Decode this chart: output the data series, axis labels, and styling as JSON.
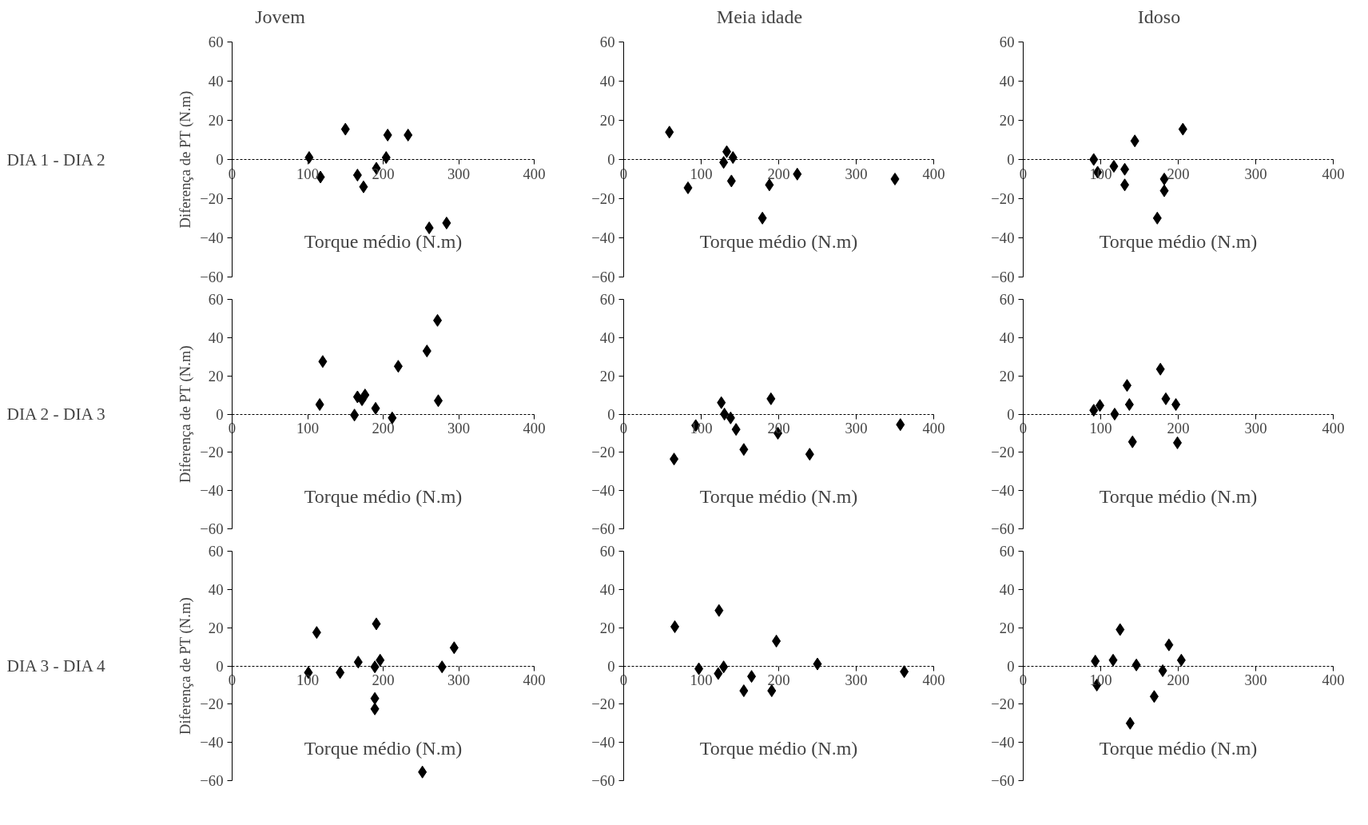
{
  "chart_data": [
    {
      "type": "scatter",
      "title": "Jovem",
      "xlabel": "Torque médio (N.m)",
      "ylabel": "Diferença de PT (N.m)",
      "annotations": [
        "DIA 1 - DIA 2"
      ],
      "color": "#000000",
      "marker": "diamond",
      "xlim": [
        0,
        400
      ],
      "ylim": [
        -60,
        60
      ],
      "xticks": [
        0,
        100,
        200,
        300,
        400
      ],
      "yticks": [
        -60,
        -40,
        -20,
        0,
        20,
        40,
        60
      ],
      "x": [
        102,
        117,
        150,
        166,
        174,
        191,
        204,
        206,
        233,
        261,
        284
      ],
      "values": [
        1,
        -9,
        15.5,
        -8,
        -14,
        -4.5,
        1,
        12.5,
        12.5,
        -35,
        -32.5
      ]
    },
    {
      "type": "scatter",
      "title": "Meia idade",
      "xlabel": "Torque médio (N.m)",
      "color": "#000000",
      "marker": "diamond",
      "xlim": [
        0,
        400
      ],
      "ylim": [
        -60,
        60
      ],
      "xticks": [
        0,
        100,
        200,
        300,
        400
      ],
      "yticks": [
        -60,
        -40,
        -20,
        0,
        20,
        40,
        60
      ],
      "x": [
        59,
        83,
        129,
        133,
        141,
        139,
        188,
        179,
        224,
        350
      ],
      "values": [
        14,
        -14.5,
        -1.5,
        4,
        1,
        -11,
        -13,
        -30,
        -7.5,
        -10
      ]
    },
    {
      "type": "scatter",
      "title": "Idoso",
      "xlabel": "Torque médio (N.m)",
      "color": "#000000",
      "marker": "diamond",
      "xlim": [
        0,
        400
      ],
      "ylim": [
        -60,
        60
      ],
      "xticks": [
        0,
        100,
        200,
        300,
        400
      ],
      "yticks": [
        -60,
        -40,
        -20,
        0,
        20,
        40,
        60
      ],
      "x": [
        91,
        96,
        117,
        131,
        131,
        144,
        182,
        182,
        173,
        206
      ],
      "values": [
        0,
        -6.5,
        -3.5,
        -5,
        -13,
        9.5,
        -10,
        -16,
        -30,
        15.5
      ]
    },
    {
      "type": "scatter",
      "xlabel": "Torque médio (N.m)",
      "ylabel": "Diferença de PT (N.m)",
      "annotations": [
        "DIA 2 - DIA 3"
      ],
      "color": "#000000",
      "marker": "diamond",
      "xlim": [
        0,
        400
      ],
      "ylim": [
        -60,
        60
      ],
      "xticks": [
        0,
        100,
        200,
        300,
        400
      ],
      "yticks": [
        -60,
        -40,
        -20,
        0,
        20,
        40,
        60
      ],
      "x": [
        116,
        120,
        162,
        166,
        172,
        176,
        190,
        212,
        220,
        258,
        272,
        273
      ],
      "values": [
        5,
        27.5,
        -0.5,
        9,
        7.5,
        10,
        3,
        -2,
        25,
        33,
        49,
        7
      ]
    },
    {
      "type": "scatter",
      "xlabel": "Torque médio (N.m)",
      "color": "#000000",
      "marker": "diamond",
      "xlim": [
        0,
        400
      ],
      "ylim": [
        -60,
        60
      ],
      "xticks": [
        0,
        100,
        200,
        300,
        400
      ],
      "yticks": [
        -60,
        -40,
        -20,
        0,
        20,
        40,
        60
      ],
      "x": [
        65,
        93,
        126,
        130,
        138,
        145,
        155,
        190,
        199,
        240,
        357
      ],
      "values": [
        -23.5,
        -6,
        6,
        0,
        -2,
        -8,
        -18.5,
        8,
        -10,
        -21,
        -5.5
      ]
    },
    {
      "type": "scatter",
      "xlabel": "Torque médio (N.m)",
      "color": "#000000",
      "marker": "diamond",
      "xlim": [
        0,
        400
      ],
      "ylim": [
        -60,
        60
      ],
      "xticks": [
        0,
        100,
        200,
        300,
        400
      ],
      "yticks": [
        -60,
        -40,
        -20,
        0,
        20,
        40,
        60
      ],
      "x": [
        91,
        99,
        118,
        134,
        137,
        141,
        177,
        184,
        197,
        199
      ],
      "values": [
        2,
        4.5,
        0,
        15,
        5,
        -14.5,
        23.5,
        8,
        5,
        -15
      ]
    },
    {
      "type": "scatter",
      "xlabel": "Torque médio (N.m)",
      "ylabel": "Diferença de PT (N.m)",
      "annotations": [
        "DIA 3 - DIA 4"
      ],
      "color": "#000000",
      "marker": "diamond",
      "xlim": [
        0,
        400
      ],
      "ylim": [
        -60,
        60
      ],
      "xticks": [
        0,
        100,
        200,
        300,
        400
      ],
      "yticks": [
        -60,
        -40,
        -20,
        0,
        20,
        40,
        60
      ],
      "x": [
        101,
        112,
        143,
        167,
        191,
        189,
        196,
        189,
        189,
        252,
        278,
        294
      ],
      "values": [
        -3.5,
        17.5,
        -3.5,
        2,
        22,
        -0.5,
        3,
        -17,
        -22.5,
        -55.5,
        -0.5,
        9.5
      ]
    },
    {
      "type": "scatter",
      "xlabel": "Torque médio (N.m)",
      "color": "#000000",
      "marker": "diamond",
      "xlim": [
        0,
        400
      ],
      "ylim": [
        -60,
        60
      ],
      "xticks": [
        0,
        100,
        200,
        300,
        400
      ],
      "yticks": [
        -60,
        -40,
        -20,
        0,
        20,
        40,
        60
      ],
      "x": [
        66,
        97,
        123,
        122,
        129,
        155,
        165,
        191,
        197,
        250,
        362
      ],
      "values": [
        20.5,
        -1.5,
        29,
        -4,
        -0.5,
        -13,
        -5.5,
        -13,
        13,
        1,
        -3
      ]
    },
    {
      "type": "scatter",
      "xlabel": "Torque médio (N.m)",
      "color": "#000000",
      "marker": "diamond",
      "xlim": [
        0,
        400
      ],
      "ylim": [
        -60,
        60
      ],
      "xticks": [
        0,
        100,
        200,
        300,
        400
      ],
      "yticks": [
        -60,
        -40,
        -20,
        0,
        20,
        40,
        60
      ],
      "x": [
        93,
        95,
        116,
        125,
        146,
        138,
        169,
        180,
        188,
        204
      ],
      "values": [
        2.5,
        -10,
        3,
        19,
        0.5,
        -30,
        -16,
        -2.5,
        11,
        3
      ]
    }
  ]
}
